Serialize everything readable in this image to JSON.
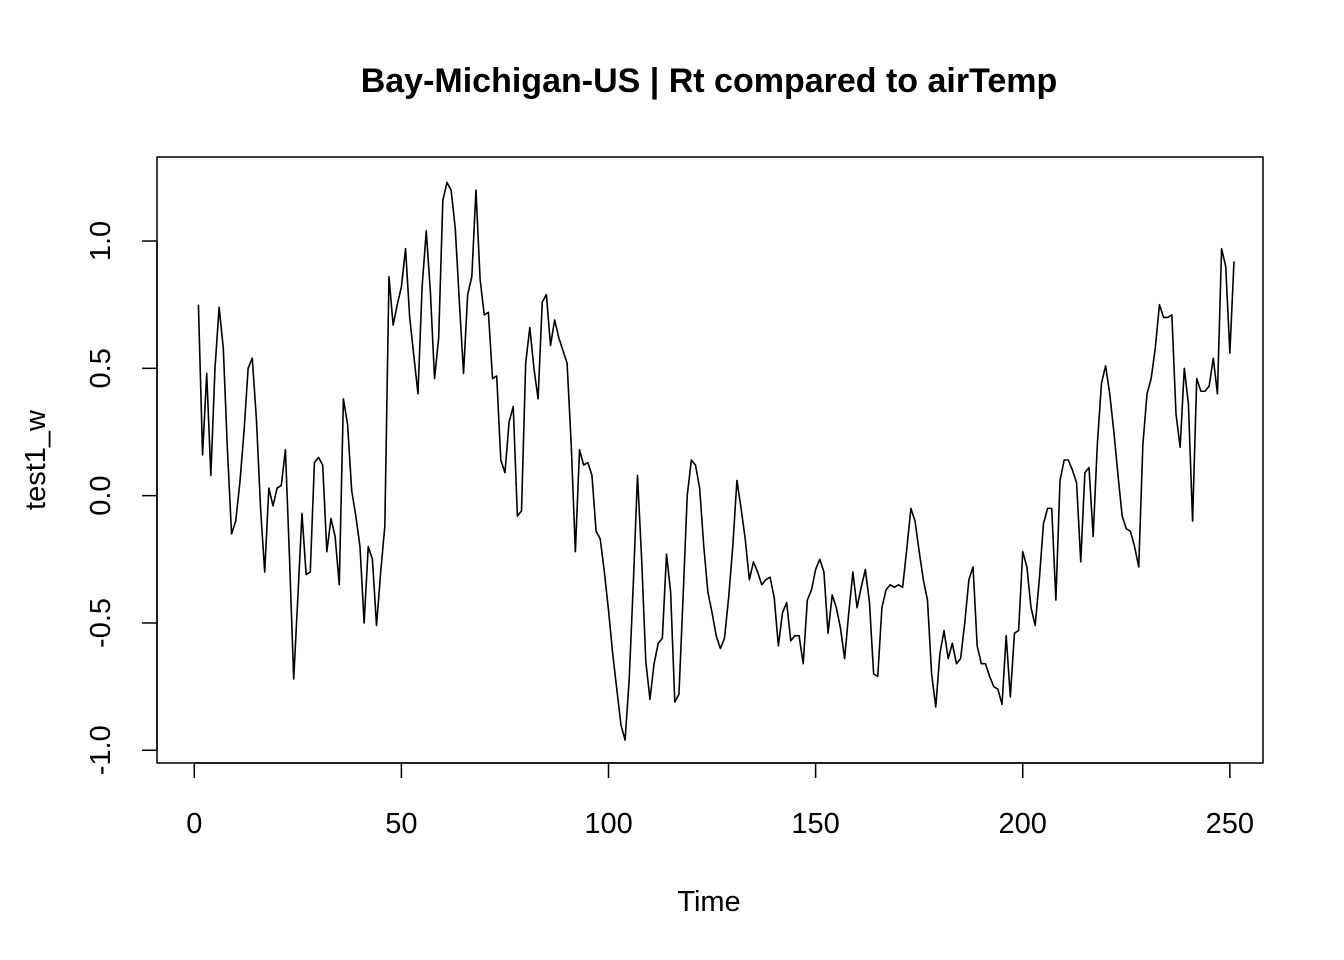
{
  "chart_data": {
    "type": "line",
    "title": "Bay-Michigan-US | Rt compared to airTemp",
    "xlabel": "Time",
    "ylabel": "test1_w",
    "xlim": [
      -9,
      258
    ],
    "ylim": [
      -1.05,
      1.33
    ],
    "x_ticks": [
      0,
      50,
      100,
      150,
      200,
      250
    ],
    "x_tick_labels": [
      "0",
      "50",
      "100",
      "150",
      "200",
      "250"
    ],
    "y_ticks": [
      -1.0,
      -0.5,
      0.0,
      0.5,
      1.0
    ],
    "y_tick_labels": [
      "-1.0",
      "-0.5",
      "0.0",
      "0.5",
      "1.0"
    ],
    "grid": false,
    "line_color": "#000000",
    "x_start": 1,
    "series": [
      {
        "values": [
          0.75,
          0.16,
          0.48,
          0.08,
          0.5,
          0.74,
          0.58,
          0.18,
          -0.15,
          -0.1,
          0.05,
          0.25,
          0.5,
          0.54,
          0.3,
          -0.05,
          -0.3,
          0.03,
          -0.04,
          0.03,
          0.04,
          0.18,
          -0.25,
          -0.72,
          -0.4,
          -0.07,
          -0.31,
          -0.3,
          0.13,
          0.15,
          0.12,
          -0.22,
          -0.09,
          -0.16,
          -0.35,
          0.38,
          0.28,
          0.02,
          -0.08,
          -0.2,
          -0.5,
          -0.2,
          -0.25,
          -0.51,
          -0.3,
          -0.12,
          0.86,
          0.67,
          0.75,
          0.82,
          0.97,
          0.7,
          0.55,
          0.4,
          0.82,
          1.04,
          0.8,
          0.46,
          0.62,
          1.16,
          1.23,
          1.2,
          1.05,
          0.76,
          0.48,
          0.79,
          0.86,
          1.2,
          0.85,
          0.71,
          0.72,
          0.46,
          0.47,
          0.14,
          0.09,
          0.29,
          0.35,
          -0.08,
          -0.06,
          0.52,
          0.66,
          0.5,
          0.38,
          0.76,
          0.79,
          0.59,
          0.69,
          0.62,
          0.57,
          0.52,
          0.2,
          -0.22,
          0.18,
          0.12,
          0.13,
          0.08,
          -0.14,
          -0.17,
          -0.3,
          -0.45,
          -0.62,
          -0.76,
          -0.9,
          -0.96,
          -0.72,
          -0.34,
          0.08,
          -0.25,
          -0.65,
          -0.8,
          -0.66,
          -0.58,
          -0.56,
          -0.23,
          -0.38,
          -0.81,
          -0.78,
          -0.4,
          0.0,
          0.14,
          0.12,
          0.03,
          -0.2,
          -0.38,
          -0.46,
          -0.55,
          -0.6,
          -0.56,
          -0.4,
          -0.2,
          0.06,
          -0.05,
          -0.17,
          -0.33,
          -0.26,
          -0.3,
          -0.35,
          -0.33,
          -0.32,
          -0.4,
          -0.59,
          -0.46,
          -0.42,
          -0.57,
          -0.55,
          -0.55,
          -0.66,
          -0.41,
          -0.37,
          -0.29,
          -0.25,
          -0.3,
          -0.54,
          -0.39,
          -0.44,
          -0.52,
          -0.64,
          -0.46,
          -0.3,
          -0.44,
          -0.36,
          -0.29,
          -0.42,
          -0.7,
          -0.71,
          -0.44,
          -0.37,
          -0.35,
          -0.36,
          -0.35,
          -0.36,
          -0.21,
          -0.05,
          -0.1,
          -0.22,
          -0.33,
          -0.41,
          -0.7,
          -0.83,
          -0.62,
          -0.53,
          -0.64,
          -0.58,
          -0.66,
          -0.64,
          -0.5,
          -0.33,
          -0.28,
          -0.59,
          -0.66,
          -0.66,
          -0.71,
          -0.75,
          -0.76,
          -0.82,
          -0.55,
          -0.79,
          -0.54,
          -0.53,
          -0.22,
          -0.28,
          -0.44,
          -0.51,
          -0.33,
          -0.11,
          -0.05,
          -0.05,
          -0.41,
          0.06,
          0.14,
          0.14,
          0.1,
          0.05,
          -0.26,
          0.09,
          0.11,
          -0.16,
          0.2,
          0.44,
          0.51,
          0.4,
          0.25,
          0.08,
          -0.08,
          -0.13,
          -0.14,
          -0.2,
          -0.28,
          0.2,
          0.4,
          0.46,
          0.58,
          0.75,
          0.7,
          0.7,
          0.71,
          0.32,
          0.19,
          0.5,
          0.36,
          -0.1,
          0.46,
          0.41,
          0.41,
          0.43,
          0.54,
          0.4,
          0.97,
          0.9,
          0.56,
          0.92
        ]
      }
    ]
  }
}
